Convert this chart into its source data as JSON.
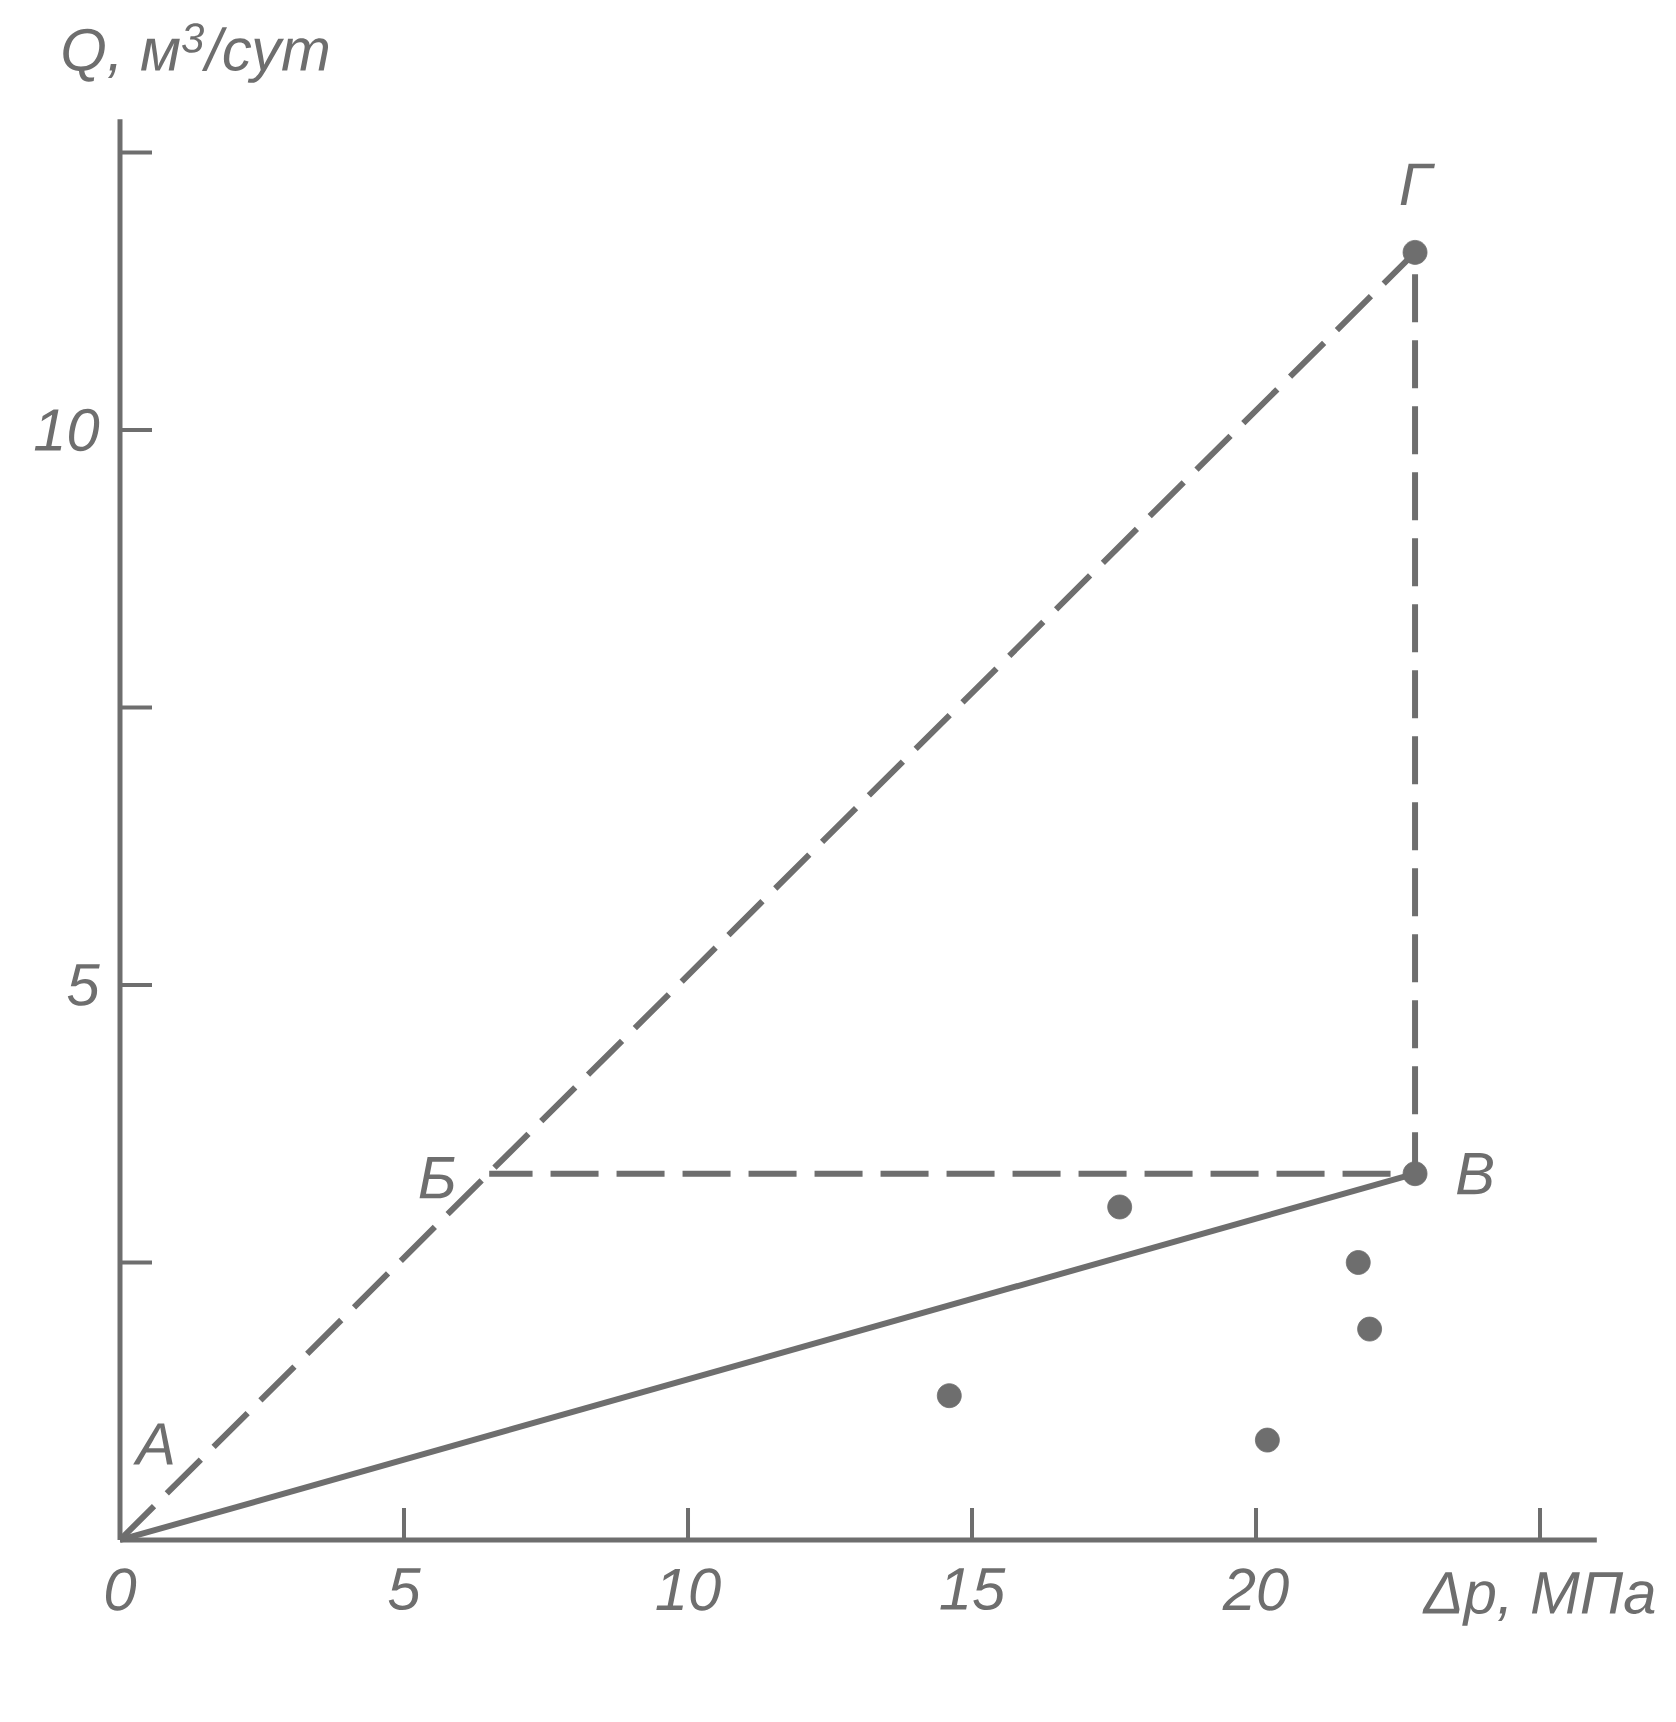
{
  "chart_data": {
    "type": "line",
    "xlabel": "Δp, МПа",
    "ylabel": "Q, м$^{3}$/сут",
    "xlim": [
      0,
      26
    ],
    "ylim": [
      0,
      12.8
    ],
    "xticks": [
      0,
      5,
      10,
      15,
      20,
      {
        "value": 25,
        "label": null
      }
    ],
    "yticks": [
      {
        "value": 2.5,
        "label": null
      },
      5,
      {
        "value": 7.5,
        "label": null
      },
      10,
      {
        "value": 12.5,
        "label": null
      }
    ],
    "series": [
      {
        "color": "#6e6e6e",
        "line_style": "solid",
        "marker": "none",
        "x": [
          0,
          22.8
        ],
        "values": [
          0,
          3.3
        ]
      },
      {
        "color": "#6e6e6e",
        "line_style": "dashed",
        "marker": "none",
        "x": [
          0,
          22.8,
          22.8,
          6.5
        ],
        "values": [
          0,
          11.6,
          3.3,
          3.3
        ]
      },
      {
        "type": "scatter",
        "color": "#6e6e6e",
        "marker": "circle",
        "x": [
          22.8,
          22.8,
          17.6,
          21.8,
          22.0,
          14.6,
          20.2
        ],
        "values": [
          11.6,
          3.3,
          3.0,
          2.5,
          1.9,
          1.3,
          0.9
        ]
      }
    ],
    "annotations": [
      {
        "text": "А",
        "x": 0,
        "y": 0
      },
      {
        "text": "Б",
        "x": 6.5,
        "y": 3.3
      },
      {
        "text": "В",
        "x": 22.8,
        "y": 3.3
      },
      {
        "text": "Г",
        "x": 22.8,
        "y": 11.6
      }
    ]
  }
}
